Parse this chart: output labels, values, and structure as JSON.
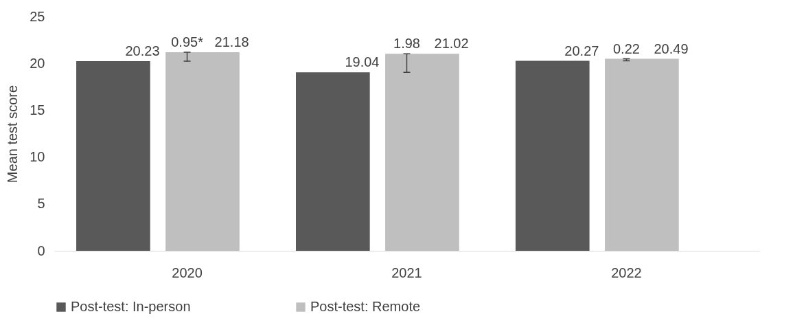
{
  "chart_data": {
    "type": "bar",
    "ylabel": "Mean test score",
    "categories": [
      "2020",
      "2021",
      "2022"
    ],
    "series": [
      {
        "name": "Post-test: In-person",
        "color": "#595959",
        "values": [
          20.23,
          19.04,
          20.27
        ]
      },
      {
        "name": "Post-test: Remote",
        "color": "#bfbfbf",
        "values": [
          21.18,
          21.02,
          20.49
        ]
      }
    ],
    "annotations": [
      {
        "text": "0.95*",
        "x": "2020",
        "y": 21.18
      },
      {
        "text": "1.98",
        "x": "2021",
        "y": 21.02
      },
      {
        "text": "0.22",
        "x": "2022",
        "y": 20.49
      }
    ],
    "ylim": [
      0,
      25
    ],
    "yticks": [
      0,
      5,
      10,
      15,
      20,
      25
    ],
    "legend": "bottom",
    "data_labels": true
  }
}
